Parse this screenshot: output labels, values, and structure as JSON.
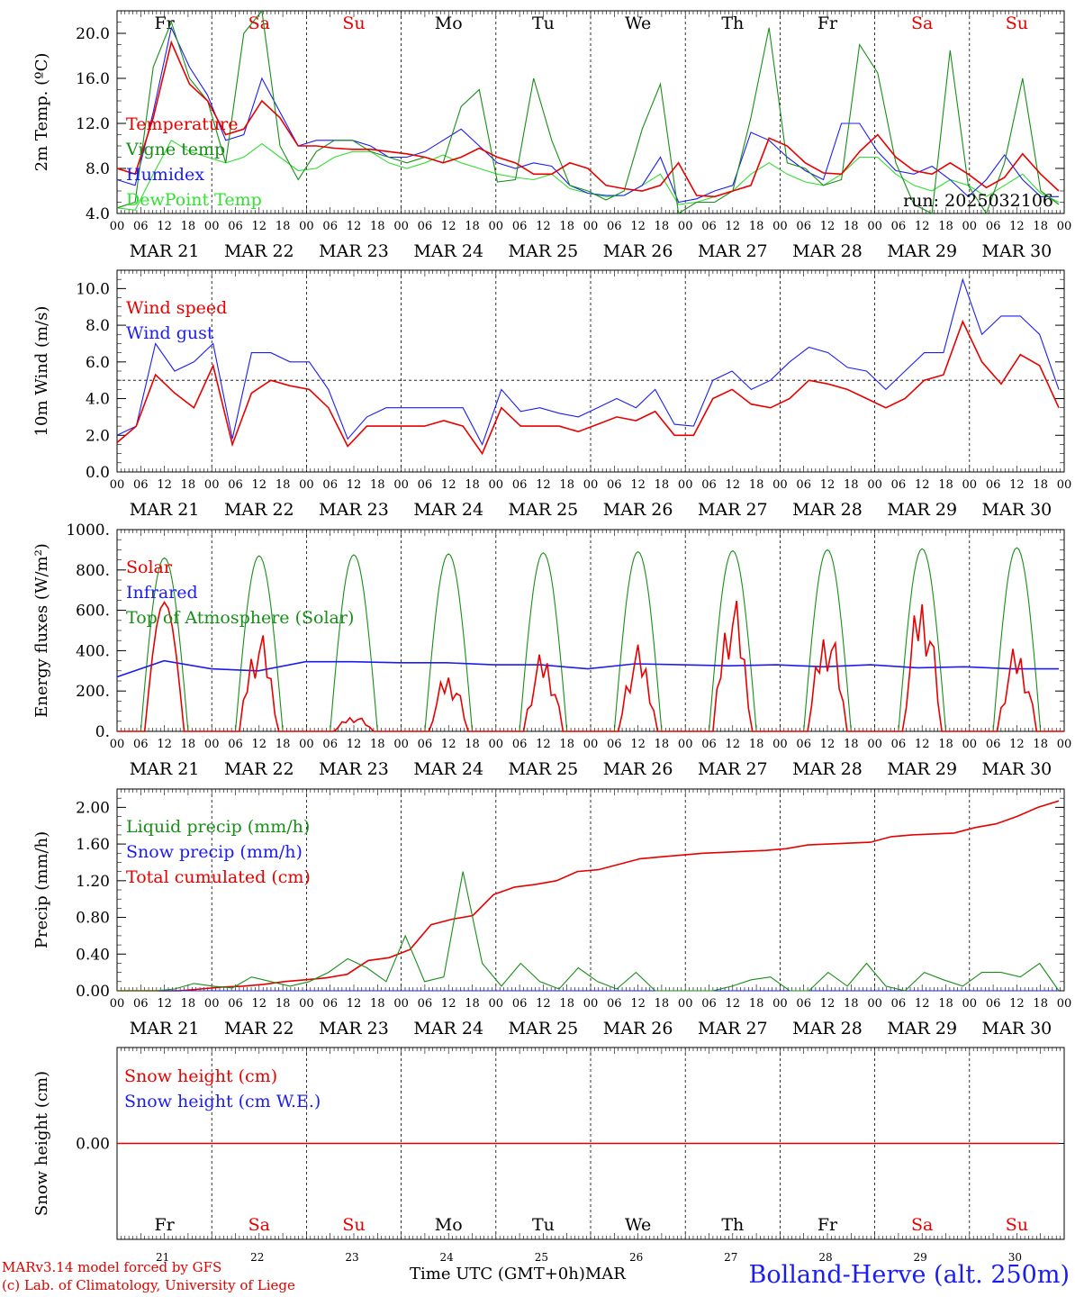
{
  "colors": {
    "red": "#e60000",
    "green": "#1a8c1a",
    "blue": "#1c1cf0",
    "light_green": "#33dd33",
    "black": "#000000"
  },
  "footer": {
    "credit_line1": "MARv3.14 model forced by GFS",
    "credit_line2": "(c) Lab. of Climatology, University of Liege",
    "x_title": "Time UTC (GMT+0h)",
    "month": "MAR",
    "location": "Bolland-Herve (alt. 250m)",
    "day_numbers": [
      "21",
      "22",
      "23",
      "24",
      "25",
      "26",
      "27",
      "28",
      "29",
      "30"
    ]
  },
  "chart_data": [
    {
      "type": "line",
      "ylabel": "2m Temp. (ºC)",
      "y_range": [
        4.0,
        22.0
      ],
      "y_ticks": [
        "4.0",
        "8.0",
        "12.0",
        "16.0",
        "20.0"
      ],
      "run_label": "run: 2025032106",
      "day_labels": [
        "Fr",
        "Sa",
        "Su",
        "Mo",
        "Tu",
        "We",
        "Th",
        "Fr",
        "Sa",
        "Su"
      ],
      "weekend_days": [
        1,
        2,
        8,
        9
      ],
      "x_ticks": [
        "00",
        "06",
        "12",
        "18"
      ],
      "date_labels": [
        "MAR 21",
        "MAR 22",
        "MAR 23",
        "MAR 24",
        "MAR 25",
        "MAR 26",
        "MAR 27",
        "MAR 28",
        "MAR 29",
        "MAR 30"
      ],
      "x_hours_per_point": 6,
      "series": [
        {
          "name": "Temperature",
          "color": "red",
          "values": [
            8.0,
            7.5,
            12.5,
            19.2,
            15.5,
            14.0,
            11.0,
            11.5,
            14.0,
            12.5,
            10.0,
            10.0,
            9.8,
            9.7,
            9.7,
            9.5,
            9.3,
            9.0,
            8.5,
            9.0,
            9.8,
            9.0,
            8.5,
            7.5,
            7.5,
            8.5,
            8.0,
            6.5,
            6.2,
            6.0,
            6.5,
            8.5,
            5.6,
            5.5,
            6.0,
            6.5,
            10.7,
            10.0,
            8.5,
            7.6,
            7.5,
            9.5,
            11.0,
            9.0,
            7.8,
            7.5,
            8.5,
            7.5,
            6.3,
            7.2,
            9.3,
            7.5,
            6.0
          ]
        },
        {
          "name": "Vigne temp",
          "color": "green",
          "values": [
            4.5,
            5.0,
            17.0,
            21.0,
            16.0,
            14.0,
            8.5,
            20.0,
            22.0,
            10.0,
            7.0,
            9.5,
            10.5,
            10.5,
            9.5,
            9.0,
            8.5,
            9.0,
            8.5,
            13.5,
            15.0,
            6.8,
            7.0,
            16.0,
            10.5,
            6.5,
            6.0,
            5.2,
            6.0,
            11.5,
            15.5,
            4.0,
            5.0,
            5.0,
            6.0,
            12.5,
            20.5,
            8.5,
            8.0,
            6.5,
            7.0,
            19.0,
            16.5,
            8.5,
            4.8,
            4.0,
            18.5,
            6.5,
            4.0,
            8.5,
            16.0,
            6.0,
            4.8
          ]
        },
        {
          "name": "Humidex",
          "color": "blue",
          "values": [
            7.0,
            6.5,
            13.0,
            20.5,
            17.0,
            14.5,
            10.5,
            11.0,
            16.0,
            13.0,
            10.0,
            10.5,
            10.5,
            10.5,
            10.0,
            9.0,
            9.0,
            9.5,
            10.5,
            11.5,
            10.0,
            8.5,
            8.0,
            8.5,
            8.2,
            6.5,
            5.8,
            5.6,
            5.6,
            6.5,
            9.0,
            5.0,
            5.3,
            6.0,
            6.5,
            11.2,
            10.5,
            9.0,
            7.8,
            7.0,
            12.0,
            12.0,
            9.5,
            7.8,
            7.5,
            8.2,
            7.0,
            5.5,
            7.0,
            9.2,
            7.0,
            5.5,
            5.5
          ]
        },
        {
          "name": "DewPoint Temp",
          "color": "light_green",
          "values": [
            4.5,
            4.3,
            7.5,
            10.5,
            9.5,
            9.0,
            8.5,
            9.0,
            10.2,
            9.0,
            7.8,
            8.0,
            9.0,
            9.5,
            9.5,
            8.5,
            8.0,
            8.5,
            9.2,
            8.5,
            8.0,
            7.5,
            7.2,
            7.0,
            7.5,
            6.2,
            5.8,
            5.5,
            5.6,
            6.5,
            7.5,
            4.8,
            5.0,
            5.5,
            6.0,
            7.5,
            8.5,
            7.5,
            6.8,
            6.5,
            7.5,
            9.0,
            9.0,
            7.5,
            6.5,
            6.0,
            7.0,
            6.5,
            5.5,
            6.5,
            7.5,
            5.8,
            5.0
          ]
        }
      ]
    },
    {
      "type": "line",
      "ylabel": "10m Wind (m/s)",
      "y_range": [
        0.0,
        11.0
      ],
      "y_ticks": [
        "0.0",
        "2.0",
        "4.0",
        "6.0",
        "8.0",
        "10.0"
      ],
      "reference_line": 5.0,
      "x_ticks": [
        "00",
        "06",
        "12",
        "18"
      ],
      "date_labels": [
        "MAR 21",
        "MAR 22",
        "MAR 23",
        "MAR 24",
        "MAR 25",
        "MAR 26",
        "MAR 27",
        "MAR 28",
        "MAR 29",
        "MAR 30"
      ],
      "x_hours_per_point": 6,
      "series": [
        {
          "name": "Wind speed",
          "color": "red",
          "values": [
            1.6,
            2.5,
            5.3,
            4.3,
            3.5,
            5.8,
            1.5,
            4.3,
            5.0,
            4.7,
            4.5,
            3.5,
            1.4,
            2.5,
            2.5,
            2.5,
            2.5,
            2.8,
            2.5,
            1.0,
            3.5,
            2.5,
            2.5,
            2.5,
            2.2,
            2.6,
            3.0,
            2.8,
            3.3,
            2.0,
            2.0,
            4.0,
            4.5,
            3.7,
            3.5,
            4.0,
            5.0,
            4.8,
            4.5,
            4.0,
            3.5,
            4.0,
            5.0,
            5.3,
            8.2,
            6.0,
            4.8,
            6.4,
            5.8,
            3.5
          ]
        },
        {
          "name": "Wind gust",
          "color": "blue",
          "values": [
            2.0,
            2.5,
            7.0,
            5.5,
            6.0,
            7.0,
            1.8,
            6.5,
            6.5,
            6.0,
            6.0,
            4.5,
            1.8,
            3.0,
            3.5,
            3.5,
            3.5,
            3.5,
            3.5,
            1.5,
            4.5,
            3.3,
            3.5,
            3.2,
            3.0,
            3.5,
            4.0,
            3.5,
            4.5,
            2.6,
            2.5,
            5.0,
            5.5,
            4.5,
            5.0,
            6.0,
            6.8,
            6.5,
            5.7,
            5.5,
            4.5,
            5.5,
            6.5,
            6.5,
            10.5,
            7.5,
            8.5,
            8.5,
            7.5,
            4.5
          ]
        }
      ]
    },
    {
      "type": "line",
      "ylabel": "Energy fluxes (W/m²)",
      "y_range": [
        0,
        1000
      ],
      "y_ticks": [
        "0.",
        "200.",
        "400.",
        "600.",
        "800.",
        "1000."
      ],
      "x_ticks": [
        "00",
        "06",
        "12",
        "18"
      ],
      "date_labels": [
        "MAR 21",
        "MAR 22",
        "MAR 23",
        "MAR 24",
        "MAR 25",
        "MAR 26",
        "MAR 27",
        "MAR 28",
        "MAR 29",
        "MAR 30"
      ],
      "series": [
        {
          "name": "Solar",
          "color": "red",
          "daily_peaks": [
            640,
            500,
            80,
            300,
            400,
            430,
            680,
            540,
            710,
            430
          ]
        },
        {
          "name": "Infrared",
          "color": "blue",
          "day_values": [
            270,
            350,
            310,
            300,
            345,
            345,
            340,
            340,
            330,
            330,
            310,
            335,
            330,
            325,
            330,
            320,
            330,
            315,
            320,
            310,
            310
          ]
        },
        {
          "name": "Top of Atmosphere (Solar)",
          "color": "green",
          "daily_peaks": [
            860,
            870,
            875,
            880,
            885,
            890,
            895,
            900,
            905,
            910
          ],
          "day_window_hours": [
            6,
            18
          ]
        }
      ]
    },
    {
      "type": "line",
      "ylabel": "Precip (mm/h)",
      "y_range": [
        0.0,
        2.2
      ],
      "y_ticks": [
        "0.00",
        "0.40",
        "0.80",
        "1.20",
        "1.60",
        "2.00"
      ],
      "x_ticks": [
        "00",
        "06",
        "12",
        "18"
      ],
      "date_labels": [
        "MAR 21",
        "MAR 22",
        "MAR 23",
        "MAR 24",
        "MAR 25",
        "MAR 26",
        "MAR 27",
        "MAR 28",
        "MAR 29",
        "MAR 30"
      ],
      "x_hours_per_point": 6,
      "series": [
        {
          "name": "Liquid precip (mm/h)",
          "color": "green",
          "values": [
            0,
            0,
            0,
            0.02,
            0.08,
            0.05,
            0.03,
            0.15,
            0.1,
            0.05,
            0.1,
            0.2,
            0.35,
            0.25,
            0.1,
            0.6,
            0.1,
            0.15,
            1.3,
            0.3,
            0.05,
            0.3,
            0.1,
            0.02,
            0.25,
            0.1,
            0.02,
            0.2,
            0,
            0,
            0,
            0,
            0.05,
            0.12,
            0.15,
            0,
            0,
            0.2,
            0.05,
            0.3,
            0.05,
            0,
            0.2,
            0.12,
            0.05,
            0.2,
            0.2,
            0.15,
            0.3,
            0
          ]
        },
        {
          "name": "Snow precip (mm/h)",
          "color": "blue",
          "values": [
            0,
            0,
            0,
            0,
            0,
            0,
            0,
            0,
            0,
            0,
            0,
            0,
            0,
            0,
            0,
            0,
            0,
            0,
            0,
            0,
            0,
            0,
            0,
            0,
            0,
            0,
            0,
            0,
            0,
            0,
            0,
            0,
            0,
            0,
            0,
            0,
            0,
            0,
            0,
            0,
            0,
            0,
            0,
            0,
            0,
            0,
            0,
            0,
            0,
            0
          ]
        },
        {
          "name": "Total cumulated (cm)",
          "color": "red",
          "values": [
            0,
            0,
            0,
            0,
            0.02,
            0.04,
            0.05,
            0.07,
            0.1,
            0.12,
            0.14,
            0.18,
            0.33,
            0.36,
            0.45,
            0.72,
            0.78,
            0.82,
            1.05,
            1.13,
            1.16,
            1.2,
            1.3,
            1.32,
            1.38,
            1.44,
            1.46,
            1.48,
            1.5,
            1.51,
            1.52,
            1.53,
            1.55,
            1.59,
            1.6,
            1.61,
            1.62,
            1.68,
            1.7,
            1.71,
            1.72,
            1.78,
            1.82,
            1.9,
            2.0,
            2.07
          ]
        }
      ]
    },
    {
      "type": "line",
      "ylabel": "Snow height (cm)",
      "y_range": [
        -1.0,
        1.0
      ],
      "y_ticks": [
        "0.00"
      ],
      "day_labels": [
        "Fr",
        "Sa",
        "Su",
        "Mo",
        "Tu",
        "We",
        "Th",
        "Fr",
        "Sa",
        "Su"
      ],
      "weekend_days": [
        1,
        2,
        8,
        9
      ],
      "series": [
        {
          "name": "Snow height (cm)",
          "color": "red",
          "values": [
            0,
            0
          ]
        },
        {
          "name": "Snow height (cm W.E.)",
          "color": "blue",
          "values": [
            0,
            0
          ]
        }
      ]
    }
  ]
}
